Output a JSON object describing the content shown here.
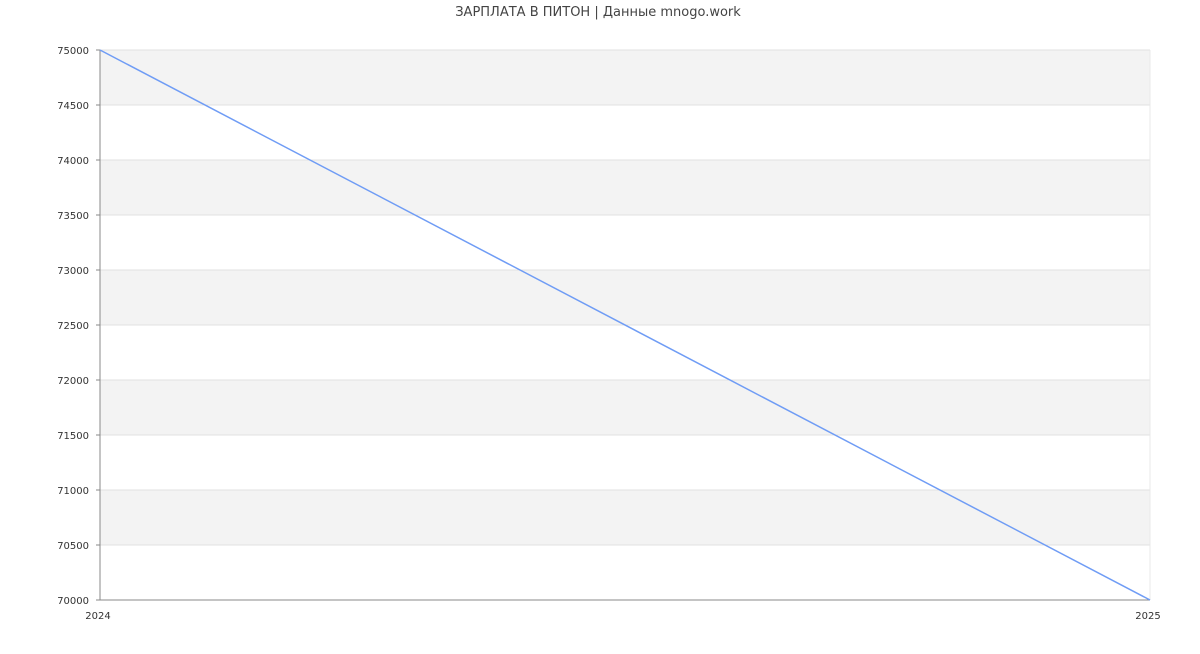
{
  "chart_data": {
    "type": "line",
    "title": "ЗАРПЛАТА В ПИТОН | Данные mnogo.work",
    "xlabel": "",
    "ylabel": "",
    "x": [
      "2024",
      "2025"
    ],
    "series": [
      {
        "values": [
          75000,
          70000
        ],
        "color": "#6f9cf5"
      }
    ],
    "ylim": [
      70000,
      75000
    ],
    "yticks": [
      70000,
      70500,
      71000,
      71500,
      72000,
      72500,
      73000,
      73500,
      74000,
      74500,
      75000
    ],
    "xticks": [
      "2024",
      "2025"
    ],
    "grid": true,
    "band_colors": [
      "#f3f3f3",
      "#ffffff"
    ],
    "axis_color": "#888888"
  }
}
